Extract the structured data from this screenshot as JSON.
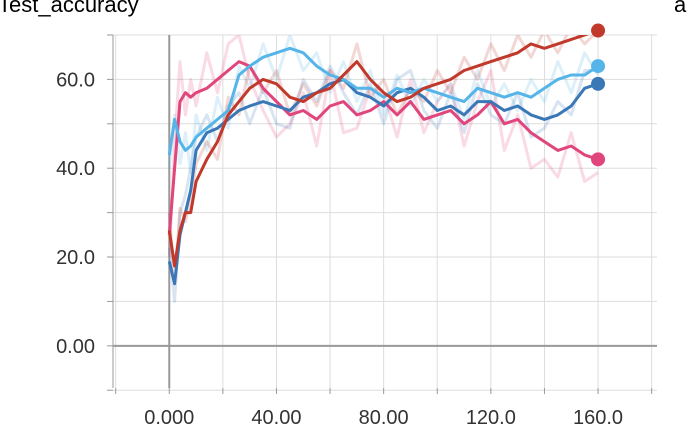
{
  "title": "Test_accuracy",
  "title_right_fragment": "a",
  "chart_data": {
    "type": "line",
    "title": "Test_accuracy",
    "xlabel": "",
    "ylabel": "",
    "xlim": [
      -21,
      182
    ],
    "ylim": [
      -9.5,
      70
    ],
    "x_tick_labels": [
      "0.000",
      "40.00",
      "80.00",
      "120.0",
      "160.0"
    ],
    "y_tick_labels": [
      "0.00",
      "20.0",
      "40.0",
      "60.0"
    ],
    "grid": true,
    "legend": "none",
    "colors": {
      "pink": "#e0457b",
      "blue": "#3a77b7",
      "light_blue": "#55b4e8",
      "red": "#c0392b",
      "grid": "#dddddd",
      "axis": "#999999"
    },
    "series": [
      {
        "color": "#e0457b",
        "x": [
          0,
          2,
          4,
          6,
          8,
          10,
          14,
          18,
          22,
          26,
          30,
          35,
          40,
          45,
          50,
          55,
          60,
          65,
          70,
          75,
          80,
          85,
          90,
          95,
          100,
          105,
          110,
          115,
          120,
          125,
          130,
          135,
          140,
          145,
          150,
          155,
          160
        ],
        "smooth": [
          25,
          40,
          55,
          57,
          56,
          57,
          58,
          60,
          62,
          64,
          63,
          58,
          55,
          52,
          53,
          51,
          54,
          55,
          52,
          53,
          55,
          52,
          55,
          51,
          52,
          53,
          50,
          52,
          55,
          50,
          51,
          48,
          46,
          44,
          45,
          43,
          42
        ],
        "raw": [
          20,
          46,
          64,
          52,
          60,
          54,
          66,
          57,
          68,
          70,
          60,
          53,
          47,
          50,
          57,
          45,
          62,
          48,
          49,
          58,
          57,
          47,
          60,
          48,
          55,
          59,
          45,
          55,
          62,
          44,
          52,
          40,
          42,
          38,
          48,
          37,
          39
        ]
      },
      {
        "color": "#3a77b7",
        "x": [
          0,
          2,
          4,
          6,
          8,
          10,
          14,
          18,
          22,
          26,
          30,
          35,
          40,
          45,
          50,
          55,
          60,
          65,
          70,
          75,
          80,
          85,
          90,
          95,
          100,
          105,
          110,
          115,
          120,
          125,
          130,
          135,
          140,
          145,
          150,
          155,
          160
        ],
        "smooth": [
          19,
          14,
          25,
          30,
          35,
          44,
          48,
          49,
          51,
          53,
          54,
          55,
          54,
          53,
          56,
          57,
          59,
          60,
          57,
          56,
          54,
          57,
          58,
          56,
          53,
          54,
          52,
          55,
          55,
          53,
          54,
          52,
          51,
          52,
          54,
          58,
          59
        ],
        "raw": [
          22,
          10,
          30,
          34,
          40,
          47,
          52,
          46,
          54,
          57,
          50,
          58,
          50,
          49,
          60,
          55,
          63,
          57,
          52,
          59,
          50,
          60,
          62,
          53,
          49,
          57,
          48,
          59,
          52,
          50,
          57,
          47,
          49,
          55,
          52,
          62,
          62
        ]
      },
      {
        "color": "#55b4e8",
        "x": [
          0,
          2,
          4,
          6,
          8,
          10,
          14,
          18,
          22,
          26,
          30,
          35,
          40,
          45,
          50,
          55,
          60,
          65,
          70,
          75,
          80,
          85,
          90,
          95,
          100,
          105,
          110,
          115,
          120,
          125,
          130,
          135,
          140,
          145,
          150,
          155,
          160
        ],
        "smooth": [
          43,
          51,
          46,
          44,
          45,
          47,
          49,
          51,
          53,
          61,
          63,
          65,
          66,
          67,
          66,
          63,
          61,
          60,
          58,
          58,
          56,
          58,
          57,
          58,
          57,
          56,
          55,
          58,
          57,
          56,
          57,
          56,
          58,
          60,
          61,
          61,
          63
        ],
        "raw": [
          40,
          52,
          41,
          48,
          39,
          52,
          44,
          56,
          49,
          63,
          58,
          68,
          60,
          70,
          62,
          66,
          57,
          64,
          55,
          62,
          52,
          61,
          54,
          60,
          55,
          59,
          51,
          62,
          54,
          59,
          53,
          60,
          55,
          64,
          57,
          66,
          61
        ]
      },
      {
        "color": "#c0392b",
        "x": [
          0,
          2,
          4,
          6,
          8,
          10,
          14,
          18,
          22,
          26,
          30,
          35,
          40,
          45,
          50,
          55,
          60,
          65,
          70,
          75,
          80,
          85,
          90,
          95,
          100,
          105,
          110,
          115,
          120,
          125,
          130,
          135,
          140,
          145,
          150,
          155,
          160
        ],
        "smooth": [
          26,
          18,
          26,
          30,
          30,
          37,
          42,
          46,
          52,
          55,
          58,
          60,
          59,
          56,
          55,
          57,
          58,
          61,
          64,
          60,
          57,
          55,
          56,
          58,
          59,
          60,
          62,
          63,
          64,
          65,
          66,
          68,
          67,
          68,
          69,
          70,
          71
        ],
        "raw": [
          30,
          14,
          31,
          28,
          33,
          41,
          46,
          42,
          56,
          52,
          63,
          57,
          62,
          52,
          59,
          54,
          62,
          58,
          68,
          56,
          60,
          52,
          58,
          55,
          62,
          57,
          65,
          60,
          68,
          62,
          70,
          65,
          71,
          66,
          72,
          68,
          71
        ]
      }
    ]
  }
}
